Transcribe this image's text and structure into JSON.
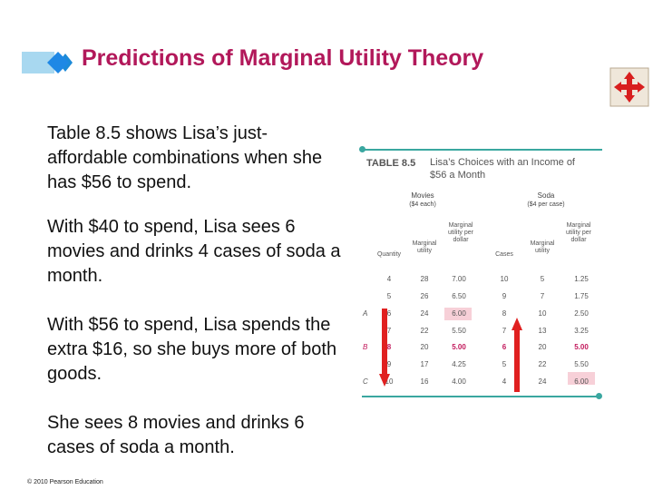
{
  "slide": {
    "title": "Predictions of Marginal Utility Theory",
    "paragraphs": [
      "Table 8.5 shows Lisa’s just-affordable combinations when she has $56 to spend.",
      "With $40 to spend, Lisa sees 6 movies and drinks 4 cases of soda a month.",
      "With $56 to spend, Lisa spends the extra $16, so she buys more of both goods.",
      "She sees 8 movies and drinks 6 cases of soda a month."
    ],
    "footer": "© 2010 Pearson Education"
  },
  "table": {
    "label": "TABLE 8.5",
    "caption_line1": "Lisa’s Choices with an Income of",
    "caption_line2": "$56 a Month",
    "movies_group": "Movies",
    "movies_price": "($4 each)",
    "soda_group": "Soda",
    "soda_price": "($4 per case)",
    "columns": [
      "Quantity",
      "Marginal utility",
      "Marginal utility per dollar",
      "Cases",
      "Marginal utility",
      "Marginal utility per dollar"
    ],
    "rows": [
      {
        "label": "",
        "q": "4",
        "mu": "28",
        "mud": "7.00",
        "cases": "10",
        "smu": "5",
        "smud": "1.25"
      },
      {
        "label": "",
        "q": "5",
        "mu": "26",
        "mud": "6.50",
        "cases": "9",
        "smu": "7",
        "smud": "1.75"
      },
      {
        "label": "A",
        "q": "6",
        "mu": "24",
        "mud": "6.00",
        "cases": "8",
        "smu": "10",
        "smud": "2.50"
      },
      {
        "label": "",
        "q": "7",
        "mu": "22",
        "mud": "5.50",
        "cases": "7",
        "smu": "13",
        "smud": "3.25"
      },
      {
        "label": "B",
        "q": "8",
        "mu": "20",
        "mud": "5.00",
        "cases": "6",
        "smu": "20",
        "smud": "5.00"
      },
      {
        "label": "",
        "q": "9",
        "mu": "17",
        "mud": "4.25",
        "cases": "5",
        "smu": "22",
        "smud": "5.50"
      },
      {
        "label": "C",
        "q": "10",
        "mu": "16",
        "mud": "4.00",
        "cases": "4",
        "smu": "24",
        "smud": "6.00"
      }
    ],
    "colors": {
      "accent_rule": "#3aa7a0",
      "highlight": "#f7d0d8",
      "emphasis": "#c2185b",
      "arrow": "#e02020"
    }
  }
}
